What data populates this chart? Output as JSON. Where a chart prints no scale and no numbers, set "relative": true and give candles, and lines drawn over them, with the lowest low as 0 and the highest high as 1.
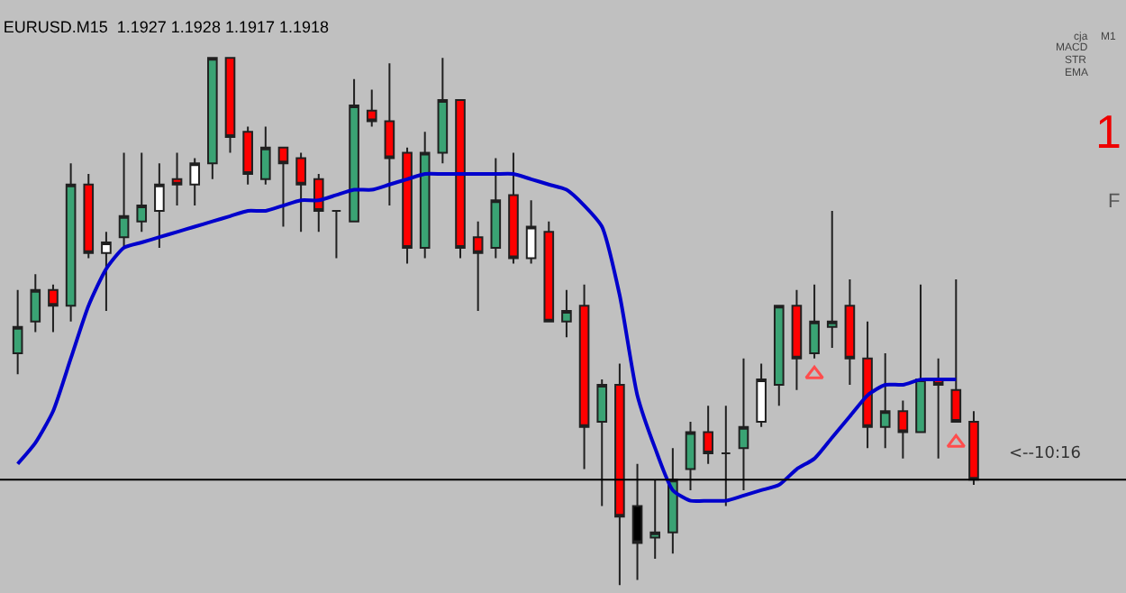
{
  "chart_data": {
    "type": "candlestick",
    "title": "EURUSD.M15  1.1927 1.1928 1.1917 1.1918",
    "relative": true,
    "categories": [
      null,
      null,
      null,
      null,
      null,
      null,
      null,
      null,
      null,
      null,
      null,
      null,
      null,
      null,
      null,
      null,
      null,
      null,
      null,
      null,
      null,
      null,
      null,
      null,
      null,
      null,
      null,
      null,
      null,
      null,
      null,
      null,
      null,
      null,
      null,
      null,
      null,
      null,
      null,
      null,
      null,
      null,
      null,
      null,
      null,
      null,
      null,
      null,
      null,
      null,
      null,
      null,
      null,
      null,
      null
    ],
    "ohlc": [
      [
        0.44,
        0.56,
        0.4,
        0.49
      ],
      [
        0.5,
        0.59,
        0.48,
        0.56
      ],
      [
        0.56,
        0.57,
        0.48,
        0.53
      ],
      [
        0.53,
        0.8,
        0.5,
        0.76
      ],
      [
        0.76,
        0.78,
        0.62,
        0.63
      ],
      [
        0.63,
        0.67,
        0.52,
        0.65
      ],
      [
        0.66,
        0.82,
        0.64,
        0.7
      ],
      [
        0.69,
        0.82,
        0.67,
        0.72
      ],
      [
        0.71,
        0.8,
        0.64,
        0.76
      ],
      [
        0.77,
        0.82,
        0.72,
        0.76
      ],
      [
        0.76,
        0.81,
        0.72,
        0.8
      ],
      [
        0.8,
        1.0,
        0.77,
        1.0
      ],
      [
        1.0,
        1.0,
        0.82,
        0.85
      ],
      [
        0.86,
        0.87,
        0.76,
        0.78
      ],
      [
        0.77,
        0.87,
        0.76,
        0.83
      ],
      [
        0.83,
        0.83,
        0.68,
        0.8
      ],
      [
        0.81,
        0.82,
        0.67,
        0.76
      ],
      [
        0.77,
        0.78,
        0.67,
        0.71
      ],
      [
        0.71,
        0.71,
        0.62,
        0.71
      ],
      [
        0.69,
        0.96,
        0.69,
        0.91
      ],
      [
        0.9,
        0.94,
        0.87,
        0.88
      ],
      [
        0.88,
        0.99,
        0.72,
        0.81
      ],
      [
        0.82,
        0.83,
        0.61,
        0.64
      ],
      [
        0.64,
        0.86,
        0.62,
        0.82
      ],
      [
        0.82,
        1.0,
        0.8,
        0.92
      ],
      [
        0.92,
        0.92,
        0.62,
        0.64
      ],
      [
        0.66,
        0.69,
        0.52,
        0.63
      ],
      [
        0.64,
        0.81,
        0.62,
        0.73
      ],
      [
        0.74,
        0.82,
        0.61,
        0.62
      ],
      [
        0.62,
        0.73,
        0.61,
        0.68
      ],
      [
        0.67,
        0.69,
        0.5,
        0.5
      ],
      [
        0.5,
        0.56,
        0.47,
        0.52
      ],
      [
        0.53,
        0.57,
        0.22,
        0.3
      ],
      [
        0.31,
        0.39,
        0.15,
        0.38
      ],
      [
        0.38,
        0.42,
        0.0,
        0.13
      ],
      [
        0.15,
        0.23,
        0.01,
        0.08
      ],
      [
        0.09,
        0.2,
        0.05,
        0.1
      ],
      [
        0.1,
        0.26,
        0.06,
        0.2
      ],
      [
        0.22,
        0.31,
        0.18,
        0.29
      ],
      [
        0.29,
        0.34,
        0.23,
        0.25
      ],
      [
        0.25,
        0.34,
        0.15,
        0.25
      ],
      [
        0.26,
        0.43,
        0.18,
        0.3
      ],
      [
        0.31,
        0.42,
        0.3,
        0.39
      ],
      [
        0.38,
        0.53,
        0.34,
        0.53
      ],
      [
        0.53,
        0.56,
        0.37,
        0.43
      ],
      [
        0.44,
        0.57,
        0.43,
        0.5
      ],
      [
        0.49,
        0.71,
        0.45,
        0.5
      ],
      [
        0.53,
        0.58,
        0.38,
        0.43
      ],
      [
        0.43,
        0.5,
        0.26,
        0.3
      ],
      [
        0.3,
        0.44,
        0.26,
        0.33
      ],
      [
        0.33,
        0.35,
        0.24,
        0.29
      ],
      [
        0.29,
        0.57,
        0.29,
        0.39
      ],
      [
        0.39,
        0.43,
        0.24,
        0.38
      ],
      [
        0.37,
        0.58,
        0.31,
        0.31
      ],
      [
        0.31,
        0.33,
        0.19,
        0.2
      ]
    ],
    "colors": [
      "#3aa374",
      "#3aa374",
      "#ff0000",
      "#3aa374",
      "#ff0000",
      "#ffffff",
      "#3aa374",
      "#3aa374",
      "#ffffff",
      "#ff0000",
      "#ffffff",
      "#3aa374",
      "#ff0000",
      "#ff0000",
      "#3aa374",
      "#ff0000",
      "#ff0000",
      "#ff0000",
      "#202020",
      "#3aa374",
      "#ff0000",
      "#ff0000",
      "#ff0000",
      "#3aa374",
      "#3aa374",
      "#ff0000",
      "#ff0000",
      "#3aa374",
      "#ff0000",
      "#ffffff",
      "#ff0000",
      "#3aa374",
      "#ff0000",
      "#3aa374",
      "#ff0000",
      "#000000",
      "#3aa374",
      "#3aa374",
      "#3aa374",
      "#ff0000",
      "#202020",
      "#3aa374",
      "#ffffff",
      "#3aa374",
      "#ff0000",
      "#3aa374",
      "#3aa374",
      "#ff0000",
      "#ff0000",
      "#3aa374",
      "#ff0000",
      "#3aa374",
      "#ff0000",
      "#ff0000",
      "#ff0000"
    ],
    "series": [
      {
        "type": "line",
        "color": "#0000cc",
        "line_style": "solid",
        "values": [
          0.23,
          0.27,
          0.33,
          0.43,
          0.53,
          0.6,
          0.64,
          0.65,
          0.66,
          0.67,
          0.68,
          0.69,
          0.7,
          0.71,
          0.71,
          0.72,
          0.73,
          0.73,
          0.74,
          0.75,
          0.75,
          0.76,
          0.77,
          0.78,
          0.78,
          0.78,
          0.78,
          0.78,
          0.78,
          0.77,
          0.76,
          0.75,
          0.72,
          0.68,
          0.55,
          0.36,
          0.26,
          0.18,
          0.16,
          0.16,
          0.16,
          0.17,
          0.18,
          0.19,
          0.22,
          0.24,
          0.28,
          0.32,
          0.36,
          0.38,
          0.38,
          0.39,
          0.39,
          0.39,
          null
        ]
      },
      {
        "type": "scatter",
        "color": "#ff4d4d",
        "marker": "triangle",
        "values": [
          null,
          null,
          null,
          null,
          null,
          null,
          null,
          null,
          null,
          null,
          null,
          null,
          null,
          null,
          null,
          null,
          null,
          null,
          null,
          null,
          null,
          null,
          null,
          null,
          null,
          null,
          null,
          null,
          null,
          null,
          null,
          null,
          null,
          null,
          null,
          null,
          null,
          null,
          null,
          null,
          null,
          null,
          null,
          null,
          null,
          0.4,
          null,
          null,
          null,
          null,
          null,
          null,
          null,
          0.27,
          null
        ]
      }
    ],
    "ref_lines": [
      {
        "axis": "y",
        "value": 0.2,
        "color": "#000000"
      }
    ],
    "annotations": [
      "<--10:16",
      "cja",
      "M1",
      "MACD",
      "STR",
      "EMA",
      "1",
      "F"
    ]
  }
}
